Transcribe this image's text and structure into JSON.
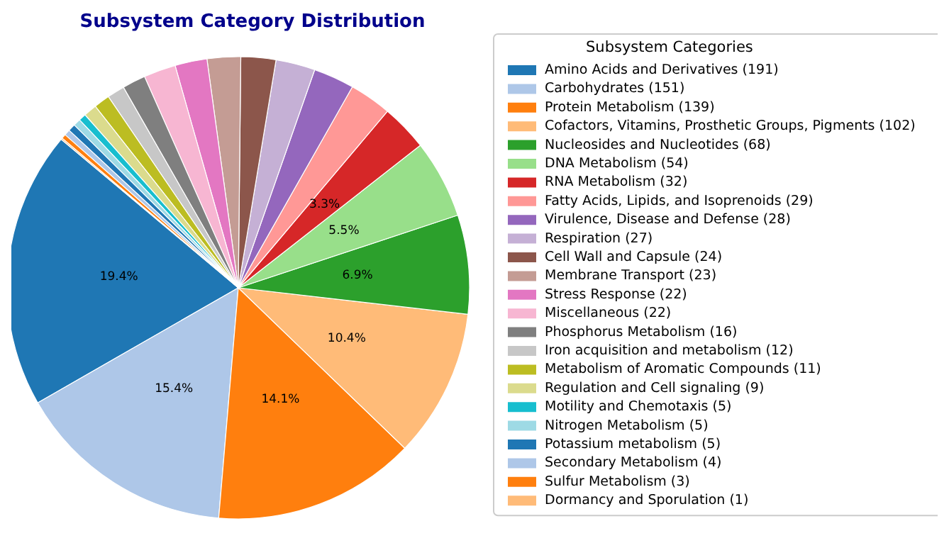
{
  "chart_data": {
    "type": "pie",
    "title": "Subsystem Category Distribution",
    "legend_title": "Subsystem Categories",
    "legend": "right",
    "categories": [
      "Amino Acids and Derivatives (191)",
      "Carbohydrates (151)",
      "Protein Metabolism (139)",
      "Cofactors, Vitamins, Prosthetic Groups, Pigments (102)",
      "Nucleosides and Nucleotides (68)",
      "DNA Metabolism (54)",
      "RNA Metabolism (32)",
      "Fatty Acids, Lipids, and Isoprenoids (29)",
      "Virulence, Disease and Defense (28)",
      "Respiration (27)",
      "Cell Wall and Capsule (24)",
      "Membrane Transport (23)",
      "Stress Response (22)",
      "Miscellaneous (22)",
      "Phosphorus Metabolism (16)",
      "Iron acquisition and metabolism (12)",
      "Metabolism of Aromatic Compounds (11)",
      "Regulation and Cell signaling (9)",
      "Motility and Chemotaxis (5)",
      "Nitrogen Metabolism (5)",
      "Potassium metabolism (5)",
      "Secondary Metabolism (4)",
      "Sulfur Metabolism (3)",
      "Dormancy and Sporulation (1)"
    ],
    "values": [
      19.4,
      15.36,
      14.14,
      10.38,
      6.92,
      5.49,
      3.26,
      2.95,
      2.85,
      2.75,
      2.44,
      2.34,
      2.24,
      2.24,
      1.63,
      1.22,
      1.12,
      0.92,
      0.51,
      0.51,
      0.51,
      0.41,
      0.31,
      0.1
    ],
    "value_labels": [
      "19.4%",
      "15.4%",
      "14.1%",
      "10.4%",
      "6.9%",
      "5.5%",
      "3.3%",
      null,
      null,
      null,
      null,
      null,
      null,
      null,
      null,
      null,
      null,
      null,
      null,
      null,
      null,
      null,
      null,
      null
    ],
    "colors": [
      "#1f77b4",
      "#aec7e8",
      "#ff7f0e",
      "#ffbb78",
      "#2ca02c",
      "#98df8a",
      "#d62728",
      "#ff9896",
      "#9467bd",
      "#c5b0d5",
      "#8c564b",
      "#c49c94",
      "#e377c2",
      "#f7b6d2",
      "#7f7f7f",
      "#c7c7c7",
      "#bcbd22",
      "#dbdb8d",
      "#17becf",
      "#9edae5",
      "#1f77b4",
      "#aec7e8",
      "#ff7f0e",
      "#ffbb78"
    ]
  }
}
